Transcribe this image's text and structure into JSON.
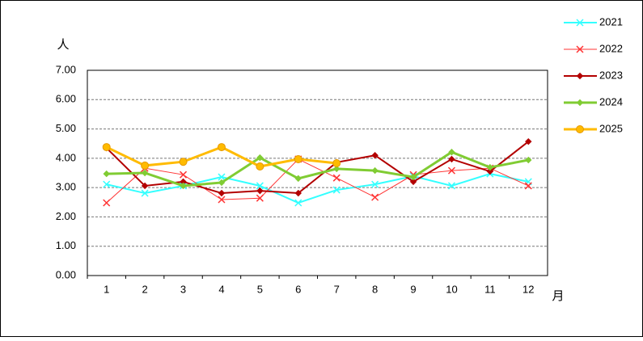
{
  "chart_data": {
    "type": "line",
    "y_label": "人",
    "x_label": "月",
    "categories": [
      "1",
      "2",
      "3",
      "4",
      "5",
      "6",
      "7",
      "8",
      "9",
      "10",
      "11",
      "12"
    ],
    "ylim": [
      0,
      7
    ],
    "yticks": [
      {
        "value": 0,
        "label": "0.00"
      },
      {
        "value": 1,
        "label": "1.00"
      },
      {
        "value": 2,
        "label": "2.00"
      },
      {
        "value": 3,
        "label": "3.00"
      },
      {
        "value": 4,
        "label": "4.00"
      },
      {
        "value": 5,
        "label": "5.00"
      },
      {
        "value": 6,
        "label": "6.00"
      },
      {
        "value": 7,
        "label": "7.00"
      }
    ],
    "grid": true,
    "legend": "right",
    "series": [
      {
        "name": "2021",
        "color": "#33ffff",
        "marker": "x",
        "values": [
          3.11,
          2.81,
          3.06,
          3.36,
          3.06,
          2.48,
          2.92,
          3.11,
          3.39,
          3.06,
          3.47,
          3.2
        ]
      },
      {
        "name": "2022",
        "color": "#ff3333",
        "marker": "x",
        "values": [
          2.48,
          3.66,
          3.44,
          2.59,
          2.64,
          3.97,
          3.33,
          2.67,
          3.44,
          3.58,
          3.66,
          3.06
        ]
      },
      {
        "name": "2023",
        "color": "#b30000",
        "marker": "diamond",
        "values": [
          4.35,
          3.06,
          3.2,
          2.81,
          2.89,
          2.81,
          3.86,
          4.1,
          3.2,
          3.97,
          3.55,
          4.57
        ]
      },
      {
        "name": "2024",
        "color": "#80cc33",
        "marker": "diamond",
        "values": [
          3.47,
          3.5,
          3.06,
          3.17,
          4.02,
          3.31,
          3.64,
          3.58,
          3.36,
          4.21,
          3.69,
          3.94
        ]
      },
      {
        "name": "2025",
        "color": "#ffbb00",
        "marker": "circle",
        "values": [
          4.38,
          3.75,
          3.88,
          4.38,
          3.72,
          3.97,
          3.83,
          null,
          null,
          null,
          null,
          null
        ]
      }
    ]
  }
}
